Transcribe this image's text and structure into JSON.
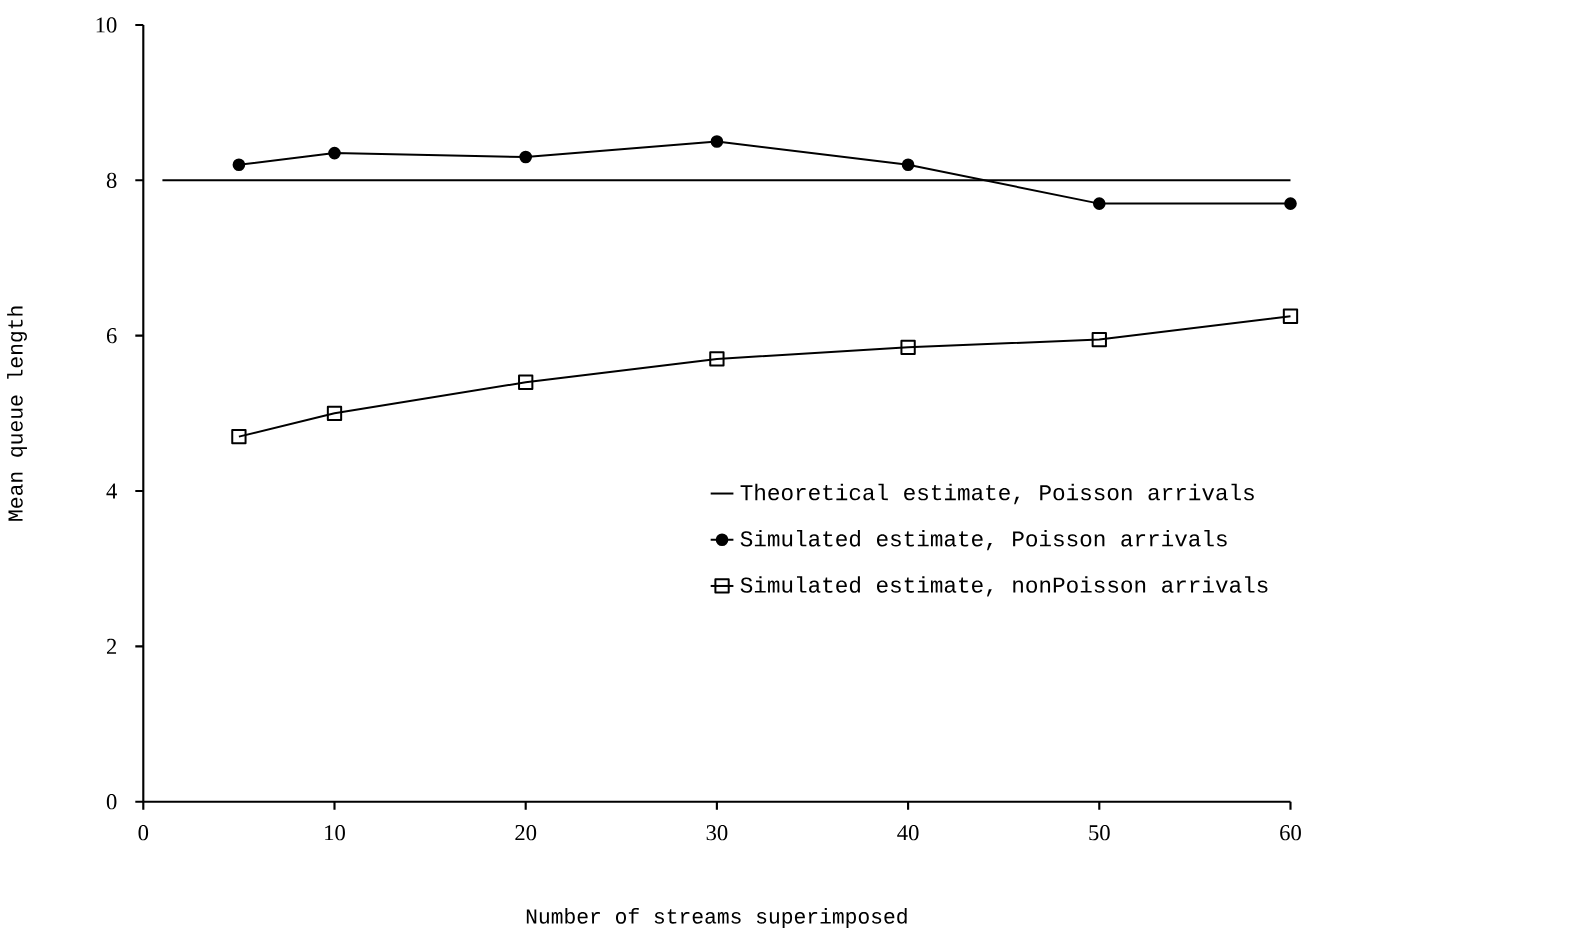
{
  "chart_data": {
    "type": "line",
    "xlabel": "Number of streams superimposed",
    "ylabel": "Mean queue length",
    "xlim": [
      0,
      60
    ],
    "ylim": [
      0,
      10
    ],
    "xticks": [
      0,
      10,
      20,
      30,
      40,
      50,
      60
    ],
    "yticks": [
      0,
      2,
      4,
      6,
      8,
      10
    ],
    "grid": false,
    "legend": "right",
    "series": [
      {
        "name": "Theoretical estimate, Poisson arrivals",
        "color": "#000000",
        "marker": "none",
        "x": [
          1,
          60
        ],
        "values": [
          8,
          8
        ]
      },
      {
        "name": "Simulated estimate, Poisson arrivals",
        "color": "#000000",
        "marker": "circle",
        "x": [
          5,
          10,
          20,
          30,
          40,
          50,
          60
        ],
        "values": [
          8.2,
          8.35,
          8.3,
          8.5,
          8.2,
          7.7,
          7.7
        ]
      },
      {
        "name": "Simulated estimate, nonPoisson arrivals",
        "color": "#000000",
        "marker": "square",
        "x": [
          5,
          10,
          20,
          30,
          40,
          50,
          60
        ],
        "values": [
          4.7,
          5.0,
          5.4,
          5.7,
          5.85,
          5.95,
          6.25
        ]
      }
    ]
  }
}
